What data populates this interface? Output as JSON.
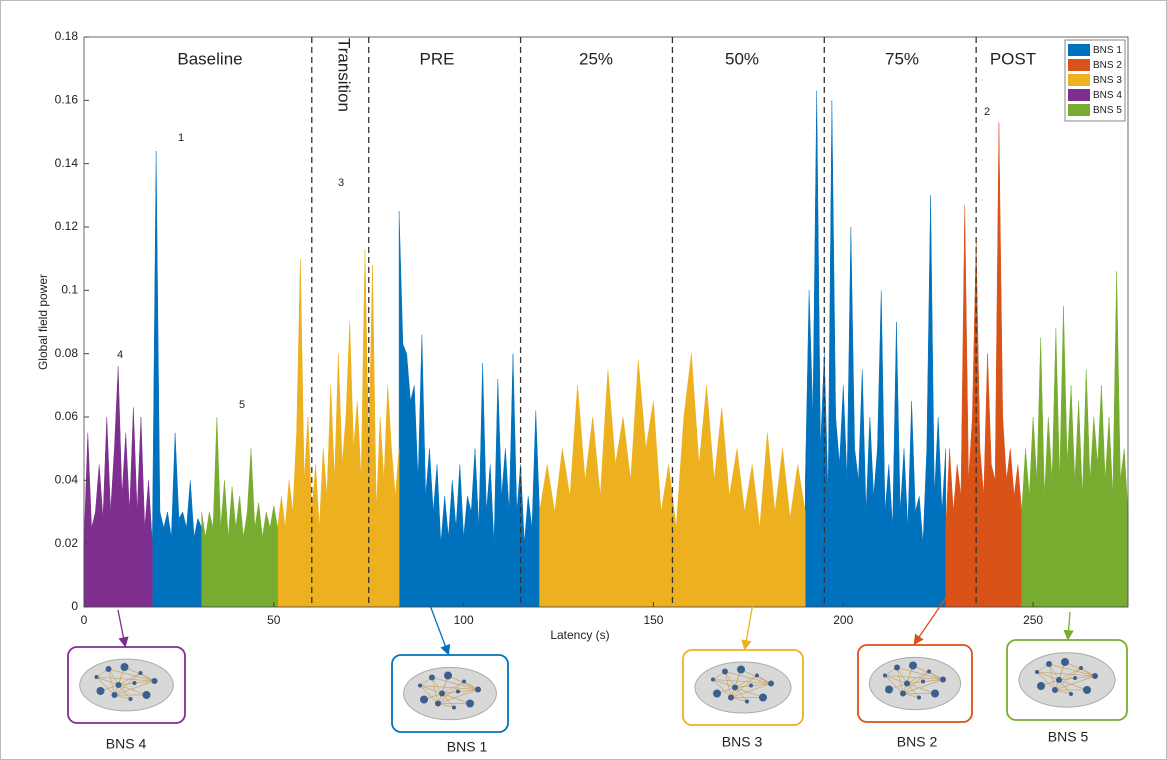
{
  "chart_data": {
    "type": "area",
    "xlabel": "Latency (s)",
    "ylabel": "Global field power",
    "xlim": [
      0,
      275
    ],
    "ylim": [
      0,
      0.18
    ],
    "xticks": [
      0,
      50,
      100,
      150,
      200,
      250
    ],
    "yticks": [
      0,
      0.02,
      0.04,
      0.06,
      0.08,
      0.1,
      0.12,
      0.14,
      0.16,
      0.18
    ],
    "legend": "top-right",
    "dividers": [
      60,
      75,
      115,
      155,
      195,
      235
    ],
    "phases": [
      "Baseline",
      "Transition",
      "PRE",
      "25%",
      "50%",
      "75%",
      "POST"
    ],
    "annotations": [
      "1",
      "3",
      "4",
      "5",
      "2"
    ],
    "networks": [
      "BNS 4",
      "BNS 1",
      "BNS 3",
      "BNS 2",
      "BNS 5"
    ],
    "series": [
      {
        "name": "BNS 1",
        "color": "#0072bd",
        "x": [
          18,
          19,
          20,
          21,
          22,
          23,
          24,
          25,
          26,
          27,
          28,
          29,
          30,
          31,
          null,
          83,
          84,
          85,
          86,
          87,
          88,
          89,
          90,
          91,
          92,
          93,
          94,
          95,
          96,
          97,
          98,
          99,
          100,
          101,
          102,
          103,
          104,
          105,
          106,
          107,
          108,
          109,
          110,
          111,
          112,
          113,
          114,
          115,
          116,
          117,
          118,
          119,
          120,
          null,
          190,
          191,
          192,
          193,
          194,
          195,
          196,
          197,
          198,
          199,
          200,
          201,
          202,
          203,
          204,
          205,
          206,
          207,
          208,
          209,
          210,
          211,
          212,
          213,
          214,
          215,
          216,
          217,
          218,
          219,
          220,
          221,
          222,
          223,
          224,
          225,
          226,
          227
        ],
        "values": [
          0.02,
          0.144,
          0.03,
          0.025,
          0.03,
          0.022,
          0.055,
          0.028,
          0.03,
          0.025,
          0.04,
          0.022,
          0.028,
          0.025,
          null,
          0.125,
          0.083,
          0.08,
          0.065,
          0.07,
          0.04,
          0.086,
          0.035,
          0.05,
          0.03,
          0.045,
          0.02,
          0.035,
          0.022,
          0.04,
          0.025,
          0.045,
          0.022,
          0.035,
          0.03,
          0.05,
          0.025,
          0.077,
          0.03,
          0.045,
          0.02,
          0.072,
          0.035,
          0.05,
          0.03,
          0.08,
          0.03,
          0.045,
          0.02,
          0.035,
          0.025,
          0.062,
          0.03,
          null,
          0.04,
          0.1,
          0.06,
          0.163,
          0.05,
          0.08,
          0.035,
          0.16,
          0.06,
          0.045,
          0.07,
          0.04,
          0.12,
          0.05,
          0.04,
          0.075,
          0.03,
          0.06,
          0.035,
          0.05,
          0.1,
          0.03,
          0.045,
          0.025,
          0.09,
          0.03,
          0.05,
          0.025,
          0.065,
          0.03,
          0.035,
          0.02,
          0.05,
          0.13,
          0.035,
          0.06,
          0.03,
          0.05
        ]
      },
      {
        "name": "BNS 2",
        "color": "#d95319",
        "x": [
          227,
          228,
          229,
          230,
          231,
          232,
          233,
          234,
          235,
          236,
          237,
          238,
          239,
          240,
          241,
          242,
          243,
          244,
          245,
          246,
          247
        ],
        "values": [
          0.025,
          0.05,
          0.03,
          0.045,
          0.035,
          0.127,
          0.04,
          0.06,
          0.115,
          0.05,
          0.035,
          0.08,
          0.045,
          0.04,
          0.153,
          0.06,
          0.04,
          0.05,
          0.035,
          0.045,
          0.03
        ]
      },
      {
        "name": "BNS 3",
        "color": "#edb120",
        "x": [
          51,
          52,
          53,
          54,
          55,
          56,
          57,
          58,
          59,
          60,
          61,
          62,
          63,
          64,
          65,
          66,
          67,
          68,
          69,
          70,
          71,
          72,
          73,
          74,
          75,
          76,
          77,
          78,
          79,
          80,
          81,
          82,
          83,
          null,
          120,
          122,
          124,
          126,
          128,
          130,
          132,
          134,
          136,
          138,
          140,
          142,
          144,
          146,
          148,
          150,
          152,
          154,
          156,
          158,
          160,
          162,
          164,
          166,
          168,
          170,
          172,
          174,
          176,
          178,
          180,
          182,
          184,
          186,
          188,
          190
        ],
        "values": [
          0.025,
          0.035,
          0.025,
          0.04,
          0.03,
          0.055,
          0.11,
          0.04,
          0.06,
          0.03,
          0.045,
          0.025,
          0.05,
          0.035,
          0.07,
          0.04,
          0.08,
          0.045,
          0.06,
          0.09,
          0.05,
          0.065,
          0.04,
          0.113,
          0.05,
          0.108,
          0.03,
          0.06,
          0.04,
          0.07,
          0.05,
          0.035,
          0.05,
          null,
          0.03,
          0.045,
          0.03,
          0.05,
          0.035,
          0.07,
          0.04,
          0.06,
          0.035,
          0.075,
          0.045,
          0.06,
          0.04,
          0.078,
          0.05,
          0.065,
          0.03,
          0.045,
          0.025,
          0.06,
          0.08,
          0.045,
          0.07,
          0.04,
          0.063,
          0.035,
          0.05,
          0.03,
          0.045,
          0.025,
          0.055,
          0.03,
          0.05,
          0.028,
          0.045,
          0.03
        ]
      },
      {
        "name": "BNS 4",
        "color": "#7e2f8e",
        "x": [
          0,
          1,
          2,
          3,
          4,
          5,
          6,
          7,
          8,
          9,
          10,
          11,
          12,
          13,
          14,
          15,
          16,
          17,
          18
        ],
        "values": [
          0.02,
          0.055,
          0.025,
          0.03,
          0.045,
          0.028,
          0.06,
          0.03,
          0.05,
          0.076,
          0.035,
          0.055,
          0.03,
          0.063,
          0.03,
          0.06,
          0.025,
          0.04,
          0.02
        ]
      },
      {
        "name": "BNS 5",
        "color": "#77ac30",
        "x": [
          31,
          32,
          33,
          34,
          35,
          36,
          37,
          38,
          39,
          40,
          41,
          42,
          43,
          44,
          45,
          46,
          47,
          48,
          49,
          50,
          51,
          null,
          247,
          248,
          249,
          250,
          251,
          252,
          253,
          254,
          255,
          256,
          257,
          258,
          259,
          260,
          261,
          262,
          263,
          264,
          265,
          266,
          267,
          268,
          269,
          270,
          271,
          272,
          273,
          274,
          275
        ],
        "values": [
          0.03,
          0.022,
          0.03,
          0.025,
          0.06,
          0.025,
          0.04,
          0.022,
          0.038,
          0.025,
          0.035,
          0.022,
          0.03,
          0.05,
          0.025,
          0.033,
          0.022,
          0.03,
          0.025,
          0.032,
          0.025,
          null,
          0.03,
          0.05,
          0.035,
          0.06,
          0.04,
          0.085,
          0.035,
          0.06,
          0.04,
          0.088,
          0.04,
          0.095,
          0.045,
          0.07,
          0.04,
          0.065,
          0.035,
          0.075,
          0.04,
          0.06,
          0.045,
          0.07,
          0.04,
          0.06,
          0.035,
          0.106,
          0.04,
          0.05,
          0.03
        ]
      }
    ]
  }
}
